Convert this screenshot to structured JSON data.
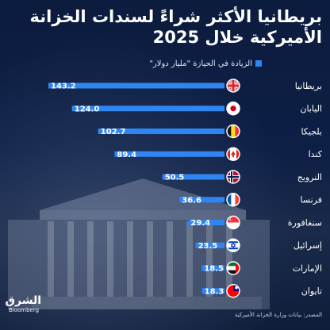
{
  "title": "بريطانيا الأكثر شراءً لسندات الخزانة الأميركية خلال 2025",
  "logo": {
    "mark": "الشرق",
    "brand": "Bloomberg"
  },
  "footer": {
    "source": "المصدر: بيانات وزارة الخزانة الأميركية"
  },
  "chart_data": {
    "type": "bar",
    "orientation": "horizontal",
    "title": "بريطانيا الأكثر شراءً لسندات الخزانة الأميركية خلال 2025",
    "legend": "الزيادة في الحيازة \"مليار دولار\"",
    "categories": [
      "بريطانيا",
      "اليابان",
      "بلجيكا",
      "كندا",
      "النرويج",
      "فرنسا",
      "سنغافورة",
      "إسرائيل",
      "الإمارات",
      "تايوان"
    ],
    "values": [
      143.2,
      124.0,
      102.7,
      89.4,
      50.5,
      36.6,
      29.4,
      23.5,
      18.5,
      18.3
    ],
    "value_labels": [
      "143.2",
      "124.0",
      "102.7",
      "89.4",
      "50.5",
      "36.6",
      "29.4",
      "23.5",
      "18.5",
      "18.3"
    ],
    "flags": [
      "uk",
      "japan",
      "belgium",
      "canada",
      "norway",
      "france",
      "singapore",
      "israel",
      "uae",
      "taiwan"
    ],
    "bar_color": "#2f86f2",
    "xlim": [
      0,
      143.2
    ],
    "grid": false
  }
}
